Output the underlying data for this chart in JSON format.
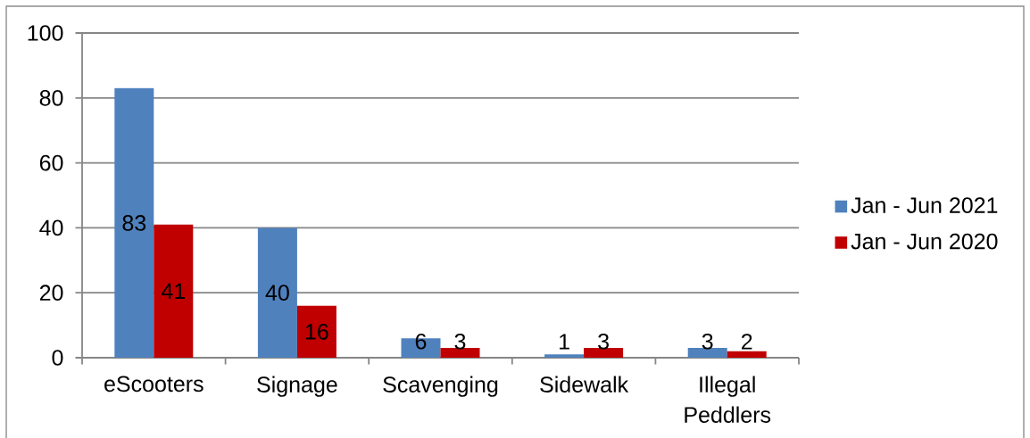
{
  "chart_data": {
    "type": "bar",
    "categories": [
      "eScooters",
      "Signage",
      "Scavenging",
      "Sidewalk",
      "Illegal Peddlers"
    ],
    "series": [
      {
        "name": "Jan - Jun 2021",
        "color": "#4f81bd",
        "values": [
          83,
          40,
          6,
          1,
          3
        ]
      },
      {
        "name": "Jan - Jun 2020",
        "color": "#c00000",
        "values": [
          41,
          16,
          3,
          3,
          2
        ]
      }
    ],
    "ylim": [
      0,
      100
    ],
    "yticks": [
      0,
      20,
      40,
      60,
      80,
      100
    ],
    "grid": "y",
    "legend": "right",
    "data_labels": true
  }
}
